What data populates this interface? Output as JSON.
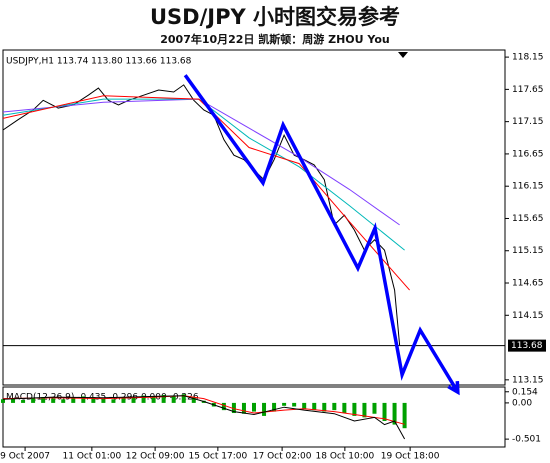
{
  "chart_data": [
    {
      "type": "line",
      "title": "USD/JPY  小时图交易参考",
      "subtitle": "2007年10月22日   凯斯顿：周游 ZHOU You",
      "label": "USDJPY,H1  113.74 113.80 113.66 113.68",
      "xlim": [
        0,
        100
      ],
      "xticks": [
        {
          "value": 4.4,
          "label": "9 Oct 2007"
        },
        {
          "value": 17.7,
          "label": "11 Oct 01:00"
        },
        {
          "value": 30.3,
          "label": "12 Oct 09:00"
        },
        {
          "value": 42.8,
          "label": "15 Oct 17:00"
        },
        {
          "value": 55.6,
          "label": "17 Oct 02:00"
        },
        {
          "value": 68.1,
          "label": "18 Oct 10:00"
        },
        {
          "value": 81.1,
          "label": "19 Oct 18:00"
        }
      ],
      "ylim": [
        113.07,
        118.26
      ],
      "yticks": [
        113.15,
        114.15,
        114.65,
        115.15,
        115.65,
        116.15,
        116.65,
        117.15,
        117.65,
        118.15
      ],
      "last_price": 113.68,
      "series": [
        {
          "color": "#000000",
          "x": [
            0,
            3,
            6,
            8,
            11,
            14,
            17,
            19,
            21,
            23,
            25,
            28,
            31,
            34,
            36,
            38,
            40,
            42,
            44,
            46,
            48,
            50,
            52,
            54,
            56,
            58,
            60,
            62,
            64,
            66,
            68,
            70,
            72,
            74,
            76,
            78,
            79
          ],
          "values": [
            117.02,
            117.18,
            117.33,
            117.48,
            117.36,
            117.41,
            117.56,
            117.67,
            117.48,
            117.41,
            117.48,
            117.56,
            117.64,
            117.61,
            117.72,
            117.48,
            117.33,
            117.25,
            116.87,
            116.63,
            116.56,
            116.4,
            116.25,
            116.56,
            116.94,
            116.63,
            116.56,
            116.48,
            116.25,
            115.55,
            115.7,
            115.47,
            115.16,
            115.32,
            115.16,
            114.54,
            113.69
          ]
        },
        {
          "color": "#8040ff",
          "x": [
            0,
            20,
            39,
            49,
            59,
            69,
            79
          ],
          "values": [
            117.3,
            117.45,
            117.5,
            117.05,
            116.6,
            116.1,
            115.55
          ]
        },
        {
          "color": "#00b8b8",
          "x": [
            0,
            20,
            39,
            49,
            59,
            69,
            80
          ],
          "values": [
            117.25,
            117.5,
            117.5,
            116.9,
            116.45,
            115.85,
            115.16
          ]
        },
        {
          "color": "#ff0000",
          "x": [
            0,
            20,
            39,
            49,
            59,
            69,
            81
          ],
          "values": [
            117.2,
            117.55,
            117.5,
            116.75,
            116.5,
            115.6,
            114.54
          ]
        }
      ],
      "annotation_line": {
        "color": "#0000ff",
        "x": [
          36.3,
          51.8,
          55.8,
          70.7,
          74.1,
          79.5,
          83.1,
          90.6
        ],
        "values": [
          117.87,
          116.2,
          117.1,
          114.88,
          115.5,
          113.23,
          113.92,
          112.96
        ]
      }
    },
    {
      "type": "bar",
      "label": "MACD(12,26,9) -0.435 -0.296 0.000 -0.226",
      "xlim": [
        0,
        100
      ],
      "ylim": [
        -0.61,
        0.22
      ],
      "yticks": [
        0.154,
        {
          "value": 0,
          "label": "0.00"
        },
        -0.501
      ],
      "color": "#00a000",
      "x": [
        0,
        2,
        4,
        6,
        8,
        10,
        12,
        14,
        16,
        18,
        20,
        22,
        24,
        26,
        28,
        30,
        32,
        34,
        36,
        38,
        40,
        42,
        44,
        46,
        48,
        50,
        52,
        54,
        56,
        58,
        60,
        62,
        64,
        66,
        68,
        70,
        72,
        74,
        76,
        78,
        80
      ],
      "values": [
        0.05,
        0.06,
        0.04,
        0.07,
        0.08,
        0.06,
        0.05,
        0.07,
        0.09,
        0.08,
        0.06,
        0.05,
        0.07,
        0.08,
        0.1,
        0.09,
        0.11,
        0.1,
        0.12,
        0.08,
        0.03,
        -0.05,
        -0.1,
        -0.14,
        -0.15,
        -0.12,
        -0.18,
        -0.12,
        -0.04,
        -0.05,
        -0.08,
        -0.1,
        -0.12,
        -0.1,
        -0.14,
        -0.18,
        -0.2,
        -0.15,
        -0.25,
        -0.3,
        -0.35
      ],
      "series": [
        {
          "color": "#ff0000",
          "x": [
            0,
            10,
            20,
            30,
            36,
            40,
            46,
            50,
            56,
            60,
            66,
            70,
            76,
            80
          ],
          "values": [
            0.06,
            0.07,
            0.06,
            0.08,
            0.1,
            0.06,
            -0.08,
            -0.14,
            -0.1,
            -0.08,
            -0.12,
            -0.16,
            -0.22,
            -0.296
          ]
        },
        {
          "color": "#000000",
          "x": [
            0,
            10,
            20,
            30,
            36,
            40,
            46,
            50,
            56,
            60,
            66,
            70,
            74,
            76,
            78,
            80
          ],
          "values": [
            0.05,
            0.08,
            0.07,
            0.09,
            0.1,
            0.02,
            -0.12,
            -0.16,
            -0.06,
            -0.1,
            -0.15,
            -0.25,
            -0.2,
            -0.3,
            -0.25,
            -0.5
          ]
        }
      ]
    }
  ]
}
